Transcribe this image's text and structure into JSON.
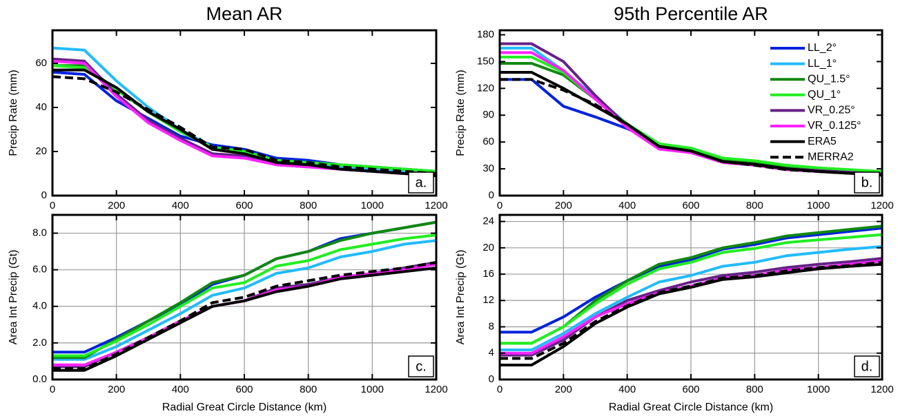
{
  "chart_data": [
    {
      "type": "line",
      "title": "Mean AR",
      "ylabel": "Precip Rate (mm)",
      "panel_label": "a.",
      "x": [
        0,
        100,
        200,
        300,
        400,
        500,
        600,
        700,
        800,
        900,
        1000,
        1100,
        1200
      ],
      "xlim": [
        0,
        1200
      ],
      "xticks": [
        0,
        200,
        400,
        600,
        800,
        1000,
        1200
      ],
      "ylim": [
        0,
        75
      ],
      "yticks": [
        0,
        20,
        40,
        60
      ],
      "grid": false,
      "series": [
        {
          "color": "#0022dd",
          "style": "solid",
          "values": [
            56,
            55,
            43,
            35,
            27,
            23,
            21,
            17,
            16,
            14,
            13,
            12,
            11
          ]
        },
        {
          "color": "#22bbff",
          "style": "solid",
          "values": [
            67,
            66,
            52,
            40,
            30,
            22,
            20,
            16,
            15,
            13,
            12,
            11,
            10
          ]
        },
        {
          "color": "#118811",
          "style": "solid",
          "values": [
            59,
            59,
            48,
            38,
            29,
            22,
            20,
            16,
            15,
            14,
            13,
            12,
            11
          ]
        },
        {
          "color": "#22ee22",
          "style": "solid",
          "values": [
            59,
            58,
            48,
            38,
            29,
            22,
            20,
            16,
            15,
            14,
            13,
            12,
            11
          ]
        },
        {
          "color": "#662288",
          "style": "solid",
          "values": [
            62,
            61,
            46,
            34,
            26,
            19,
            18,
            14,
            13,
            12,
            11,
            10,
            10
          ]
        },
        {
          "color": "#ff22ff",
          "style": "solid",
          "values": [
            61,
            60,
            45,
            33,
            25,
            18,
            17,
            14,
            13,
            12,
            11,
            10,
            9
          ]
        },
        {
          "color": "#000000",
          "style": "solid",
          "values": [
            57,
            57,
            49,
            38,
            30,
            21,
            19,
            15,
            14,
            12,
            11,
            10,
            9
          ]
        },
        {
          "color": "#000000",
          "style": "dashed",
          "values": [
            54,
            53,
            47,
            39,
            31,
            22,
            21,
            16,
            15,
            13,
            12,
            11,
            10
          ]
        }
      ]
    },
    {
      "type": "line",
      "title": "95th Percentile AR",
      "ylabel": "Precip Rate (mm)",
      "panel_label": "b.",
      "x": [
        0,
        100,
        200,
        300,
        400,
        500,
        600,
        700,
        800,
        900,
        1000,
        1100,
        1200
      ],
      "xlim": [
        0,
        1200
      ],
      "xticks": [
        0,
        200,
        400,
        600,
        800,
        1000,
        1200
      ],
      "ylim": [
        0,
        185
      ],
      "yticks": [
        0,
        30,
        60,
        90,
        120,
        150,
        180
      ],
      "grid": false,
      "legend": "upper right",
      "series": [
        {
          "name": "LL_2°",
          "color": "#0022dd",
          "style": "solid",
          "values": [
            130,
            130,
            100,
            88,
            75,
            58,
            52,
            40,
            37,
            32,
            29,
            27,
            25
          ]
        },
        {
          "name": "LL_1°",
          "color": "#22bbff",
          "style": "solid",
          "values": [
            165,
            165,
            140,
            110,
            80,
            57,
            52,
            41,
            38,
            33,
            30,
            28,
            26
          ]
        },
        {
          "name": "QU_1.5°",
          "color": "#118811",
          "style": "solid",
          "values": [
            148,
            148,
            135,
            108,
            80,
            58,
            53,
            41,
            38,
            33,
            30,
            28,
            26
          ]
        },
        {
          "name": "QU_1°",
          "color": "#22ee22",
          "style": "solid",
          "values": [
            155,
            155,
            138,
            108,
            80,
            58,
            53,
            42,
            39,
            34,
            31,
            29,
            27
          ]
        },
        {
          "name": "VR_0.25°",
          "color": "#662288",
          "style": "solid",
          "values": [
            170,
            170,
            150,
            112,
            78,
            54,
            49,
            38,
            35,
            30,
            28,
            26,
            24
          ]
        },
        {
          "name": "VR_0.125°",
          "color": "#ff22ff",
          "style": "solid",
          "values": [
            160,
            160,
            140,
            108,
            76,
            52,
            48,
            37,
            34,
            29,
            27,
            25,
            23
          ]
        },
        {
          "name": "ERA5",
          "color": "#000000",
          "style": "solid",
          "values": [
            138,
            138,
            120,
            100,
            80,
            55,
            50,
            38,
            35,
            30,
            27,
            25,
            23
          ]
        },
        {
          "name": "MERRA2",
          "color": "#000000",
          "style": "dashed",
          "values": [
            130,
            130,
            118,
            102,
            80,
            55,
            50,
            38,
            34,
            29,
            27,
            25,
            23
          ]
        }
      ]
    },
    {
      "type": "line",
      "ylabel": "Area Int Precip (Gt)",
      "xlabel": "Radial Great Circle Distance (km)",
      "panel_label": "c.",
      "x": [
        0,
        100,
        200,
        300,
        400,
        500,
        600,
        700,
        800,
        900,
        1000,
        1100,
        1200
      ],
      "xlim": [
        0,
        1200
      ],
      "xticks": [
        0,
        200,
        400,
        600,
        800,
        1000,
        1200
      ],
      "ylim": [
        0,
        9
      ],
      "yticks": [
        {
          "value": 0,
          "label": "0.0"
        },
        {
          "value": 2,
          "label": "2.0"
        },
        {
          "value": 4,
          "label": "4.0"
        },
        {
          "value": 6,
          "label": "6.0"
        },
        {
          "value": 8,
          "label": "8.0"
        }
      ],
      "grid": true,
      "series": [
        {
          "color": "#0022dd",
          "style": "solid",
          "values": [
            1.5,
            1.5,
            2.3,
            3.2,
            4.1,
            5.2,
            5.7,
            6.6,
            7.0,
            7.7,
            8.0,
            8.3,
            8.6
          ]
        },
        {
          "color": "#22bbff",
          "style": "solid",
          "values": [
            1.1,
            1.1,
            1.8,
            2.7,
            3.6,
            4.6,
            5.0,
            5.8,
            6.1,
            6.7,
            7.0,
            7.4,
            7.6
          ]
        },
        {
          "color": "#118811",
          "style": "solid",
          "values": [
            1.2,
            1.2,
            2.2,
            3.2,
            4.2,
            5.3,
            5.7,
            6.6,
            7.0,
            7.6,
            8.0,
            8.3,
            8.6
          ]
        },
        {
          "color": "#22ee22",
          "style": "solid",
          "values": [
            1.3,
            1.3,
            2.1,
            3.0,
            4.0,
            5.0,
            5.3,
            6.2,
            6.5,
            7.1,
            7.4,
            7.7,
            7.9
          ]
        },
        {
          "color": "#662288",
          "style": "solid",
          "values": [
            0.7,
            0.7,
            1.5,
            2.3,
            3.2,
            4.0,
            4.3,
            5.0,
            5.2,
            5.6,
            5.8,
            6.1,
            6.4
          ]
        },
        {
          "color": "#ff22ff",
          "style": "solid",
          "values": [
            0.8,
            0.8,
            1.5,
            2.3,
            3.2,
            4.0,
            4.3,
            4.9,
            5.1,
            5.6,
            5.8,
            6.0,
            6.3
          ]
        },
        {
          "color": "#000000",
          "style": "solid",
          "values": [
            0.5,
            0.5,
            1.3,
            2.2,
            3.1,
            4.0,
            4.3,
            4.8,
            5.1,
            5.5,
            5.7,
            5.9,
            6.1
          ]
        },
        {
          "color": "#000000",
          "style": "dashed",
          "values": [
            0.6,
            0.6,
            1.4,
            2.3,
            3.2,
            4.2,
            4.5,
            5.1,
            5.4,
            5.7,
            5.9,
            6.1,
            6.4
          ]
        }
      ]
    },
    {
      "type": "line",
      "ylabel": "Area Int Precip (Gt)",
      "xlabel": "Radial Great Circle Distance (km)",
      "panel_label": "d.",
      "x": [
        0,
        100,
        200,
        300,
        400,
        500,
        600,
        700,
        800,
        900,
        1000,
        1100,
        1200
      ],
      "xlim": [
        0,
        1200
      ],
      "xticks": [
        0,
        200,
        400,
        600,
        800,
        1000,
        1200
      ],
      "ylim": [
        0,
        25
      ],
      "yticks": [
        0,
        4,
        8,
        12,
        16,
        20,
        24
      ],
      "grid": true,
      "series": [
        {
          "color": "#0022dd",
          "style": "solid",
          "values": [
            7.2,
            7.2,
            9.5,
            12.5,
            15,
            17.2,
            18.2,
            19.8,
            20.5,
            21.5,
            22,
            22.5,
            23
          ]
        },
        {
          "color": "#22bbff",
          "style": "solid",
          "values": [
            4.5,
            4.5,
            7,
            10,
            12.5,
            14.8,
            15.8,
            17.2,
            17.8,
            18.8,
            19.3,
            19.8,
            20.2
          ]
        },
        {
          "color": "#118811",
          "style": "solid",
          "values": [
            5.5,
            5.5,
            8,
            12,
            15,
            17.5,
            18.5,
            20,
            20.8,
            21.8,
            22.3,
            22.8,
            23.3
          ]
        },
        {
          "color": "#22ee22",
          "style": "solid",
          "values": [
            5.5,
            5.5,
            8,
            11.5,
            14.5,
            16.8,
            17.8,
            19.3,
            19.9,
            20.8,
            21.2,
            21.6,
            22
          ]
        },
        {
          "color": "#662288",
          "style": "solid",
          "values": [
            3.7,
            3.7,
            6,
            9.5,
            12,
            13.5,
            14.8,
            15.8,
            16.3,
            17,
            17.5,
            17.9,
            18.4
          ]
        },
        {
          "color": "#ff22ff",
          "style": "solid",
          "values": [
            4,
            4,
            6.5,
            9.5,
            11.5,
            13.2,
            14.2,
            15.4,
            15.8,
            16.6,
            17,
            17.5,
            18
          ]
        },
        {
          "color": "#000000",
          "style": "solid",
          "values": [
            2.2,
            2.2,
            5,
            8.5,
            11,
            13,
            14,
            15.2,
            15.6,
            16.2,
            16.8,
            17.2,
            17.5
          ]
        },
        {
          "color": "#000000",
          "style": "dashed",
          "values": [
            3.2,
            3.2,
            5.5,
            8.8,
            11.2,
            13.2,
            14.2,
            15.4,
            15.8,
            16.5,
            17,
            17.3,
            17.8
          ]
        }
      ]
    }
  ]
}
